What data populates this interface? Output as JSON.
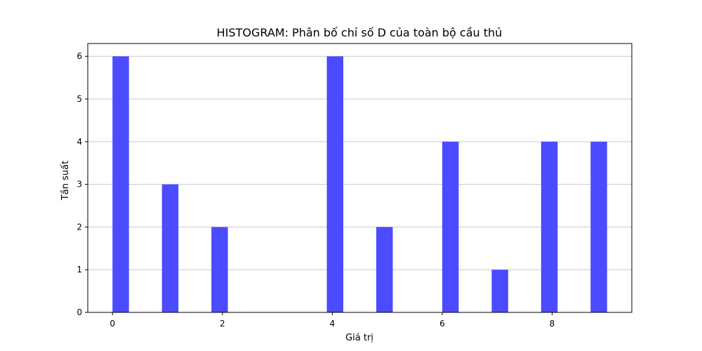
{
  "chart_data": {
    "type": "bar",
    "title": "HISTOGRAM: Phân bố chỉ số D của toàn bộ cầu thủ",
    "xlabel": "Giá trị",
    "ylabel": "Tần suất",
    "bins": [
      {
        "x_start": 0.0,
        "x_end": 0.3,
        "count": 6
      },
      {
        "x_start": 0.9,
        "x_end": 1.2,
        "count": 3
      },
      {
        "x_start": 1.8,
        "x_end": 2.1,
        "count": 2
      },
      {
        "x_start": 3.9,
        "x_end": 4.2,
        "count": 6
      },
      {
        "x_start": 4.8,
        "x_end": 5.1,
        "count": 2
      },
      {
        "x_start": 6.0,
        "x_end": 6.3,
        "count": 4
      },
      {
        "x_start": 6.9,
        "x_end": 7.2,
        "count": 1
      },
      {
        "x_start": 7.8,
        "x_end": 8.1,
        "count": 4
      },
      {
        "x_start": 8.7,
        "x_end": 9.0,
        "count": 4
      }
    ],
    "xlim": [
      -0.45,
      9.45
    ],
    "ylim": [
      0,
      6.3
    ],
    "xticks": [
      0,
      2,
      4,
      6,
      8
    ],
    "yticks": [
      0,
      1,
      2,
      3,
      4,
      5,
      6
    ],
    "grid": "y",
    "bar_color": "#4b4bff"
  }
}
